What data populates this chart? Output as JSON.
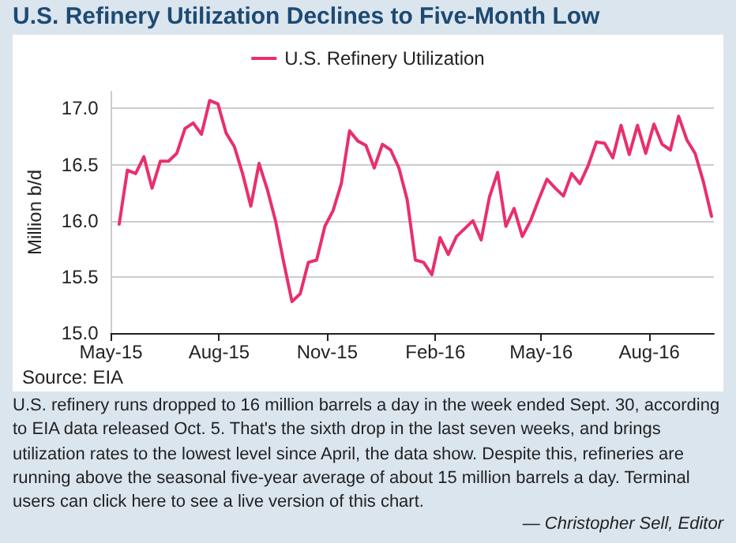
{
  "chart_data": {
    "type": "line",
    "title": "U.S. Refinery Utilization Declines to Five-Month Low",
    "ylabel": "Million b/d",
    "annotations": [
      "Source: EIA",
      "U.S. refinery runs dropped to 16 million barrels a day in the week ended Sept. 30, according to EIA data released Oct. 5. That's the sixth drop in the last seven weeks, and brings utilization rates to the lowest level since April, the data show. Despite this, refineries are running above the seasonal five-year average of about 15 million barrels a day. Terminal users can click here to see a live version of this chart.",
      "— Christopher Sell, Editor"
    ],
    "x": [
      "2015-05-08",
      "2015-05-15",
      "2015-05-22",
      "2015-05-29",
      "2015-06-05",
      "2015-06-12",
      "2015-06-19",
      "2015-06-26",
      "2015-07-03",
      "2015-07-10",
      "2015-07-17",
      "2015-07-24",
      "2015-07-31",
      "2015-08-07",
      "2015-08-14",
      "2015-08-21",
      "2015-08-28",
      "2015-09-04",
      "2015-09-11",
      "2015-09-18",
      "2015-09-25",
      "2015-10-02",
      "2015-10-09",
      "2015-10-16",
      "2015-10-23",
      "2015-10-30",
      "2015-11-06",
      "2015-11-13",
      "2015-11-20",
      "2015-11-27",
      "2015-12-04",
      "2015-12-11",
      "2015-12-18",
      "2015-12-25",
      "2016-01-01",
      "2016-01-08",
      "2016-01-15",
      "2016-01-22",
      "2016-01-29",
      "2016-02-05",
      "2016-02-12",
      "2016-02-19",
      "2016-02-26",
      "2016-03-04",
      "2016-03-11",
      "2016-03-18",
      "2016-03-25",
      "2016-04-01",
      "2016-04-08",
      "2016-04-15",
      "2016-04-22",
      "2016-04-29",
      "2016-05-06",
      "2016-05-13",
      "2016-05-20",
      "2016-05-27",
      "2016-06-03",
      "2016-06-10",
      "2016-06-17",
      "2016-06-24",
      "2016-07-01",
      "2016-07-08",
      "2016-07-15",
      "2016-07-22",
      "2016-07-29",
      "2016-08-05",
      "2016-08-12",
      "2016-08-19",
      "2016-08-26",
      "2016-09-02",
      "2016-09-09",
      "2016-09-16",
      "2016-09-23"
    ],
    "series": [
      {
        "name": "U.S. Refinery Utilization",
        "color": "#e8306b",
        "values": [
          15.97,
          16.45,
          16.42,
          16.57,
          16.29,
          16.53,
          16.53,
          16.6,
          16.82,
          16.87,
          16.77,
          17.07,
          17.04,
          16.78,
          16.66,
          16.42,
          16.13,
          16.51,
          16.28,
          16.0,
          15.63,
          15.28,
          15.35,
          15.63,
          15.65,
          15.95,
          16.09,
          16.33,
          16.8,
          16.71,
          16.67,
          16.47,
          16.68,
          16.63,
          16.47,
          16.19,
          15.65,
          15.63,
          15.52,
          15.85,
          15.7,
          15.86,
          15.93,
          16.0,
          15.83,
          16.21,
          16.43,
          15.95,
          16.11,
          15.86,
          16.0,
          16.19,
          16.37,
          16.29,
          16.22,
          16.42,
          16.33,
          16.49,
          16.7,
          16.69,
          16.56,
          16.85,
          16.59,
          16.85,
          16.6,
          16.86,
          16.68,
          16.63,
          16.93,
          16.72,
          16.6,
          16.35,
          16.04
        ]
      }
    ],
    "xlim": [
      "2015-05-01",
      "2016-09-25"
    ],
    "xticks": [
      {
        "value": "2015-05-01",
        "label": "May-15"
      },
      {
        "value": "2015-08-01",
        "label": "Aug-15"
      },
      {
        "value": "2015-11-01",
        "label": "Nov-15"
      },
      {
        "value": "2016-02-01",
        "label": "Feb-16"
      },
      {
        "value": "2016-05-01",
        "label": "May-16"
      },
      {
        "value": "2016-08-01",
        "label": "Aug-16"
      }
    ],
    "ylim": [
      15,
      17.15
    ],
    "yticks": [
      {
        "value": 15,
        "label": "15.0"
      },
      {
        "value": 15.5,
        "label": "15.5"
      },
      {
        "value": 16,
        "label": "16.0"
      },
      {
        "value": 16.5,
        "label": "16.5"
      },
      {
        "value": 17,
        "label": "17.0"
      }
    ],
    "grid": "y",
    "legend": "top",
    "marker": "none",
    "line_style": "solid"
  }
}
